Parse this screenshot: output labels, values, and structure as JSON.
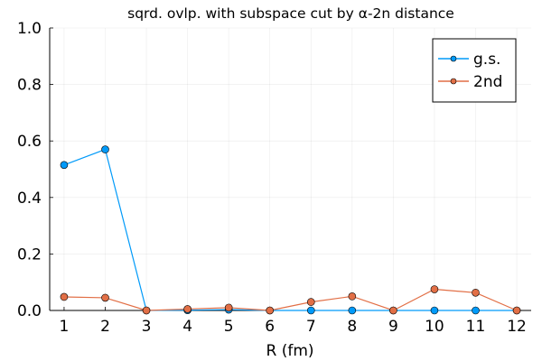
{
  "chart_data": {
    "type": "line",
    "title": "sqrd. ovlp. with subspace cut by α-2n distance",
    "xlabel": "R (fm)",
    "ylabel": "",
    "x": [
      1,
      2,
      3,
      4,
      5,
      6,
      7,
      8,
      9,
      10,
      11,
      12
    ],
    "xlim": [
      0.65,
      12.35
    ],
    "ylim": [
      0,
      1
    ],
    "x_ticks": [
      "1",
      "2",
      "3",
      "4",
      "5",
      "6",
      "7",
      "8",
      "9",
      "10",
      "11",
      "12"
    ],
    "y_ticks": [
      "0.0",
      "0.2",
      "0.4",
      "0.6",
      "0.8",
      "1.0"
    ],
    "grid": true,
    "legend_position": "top-right",
    "series": [
      {
        "name": "g.s.",
        "color": "#009af9",
        "values": [
          0.515,
          0.57,
          0.0,
          0.001,
          0.003,
          0.0,
          0.0,
          0.0,
          0.0,
          0.0,
          0.0,
          0.0
        ]
      },
      {
        "name": "2nd",
        "color": "#e26f46",
        "values": [
          0.048,
          0.045,
          0.0,
          0.005,
          0.01,
          0.0,
          0.03,
          0.05,
          0.0,
          0.075,
          0.063,
          0.0
        ]
      }
    ]
  }
}
